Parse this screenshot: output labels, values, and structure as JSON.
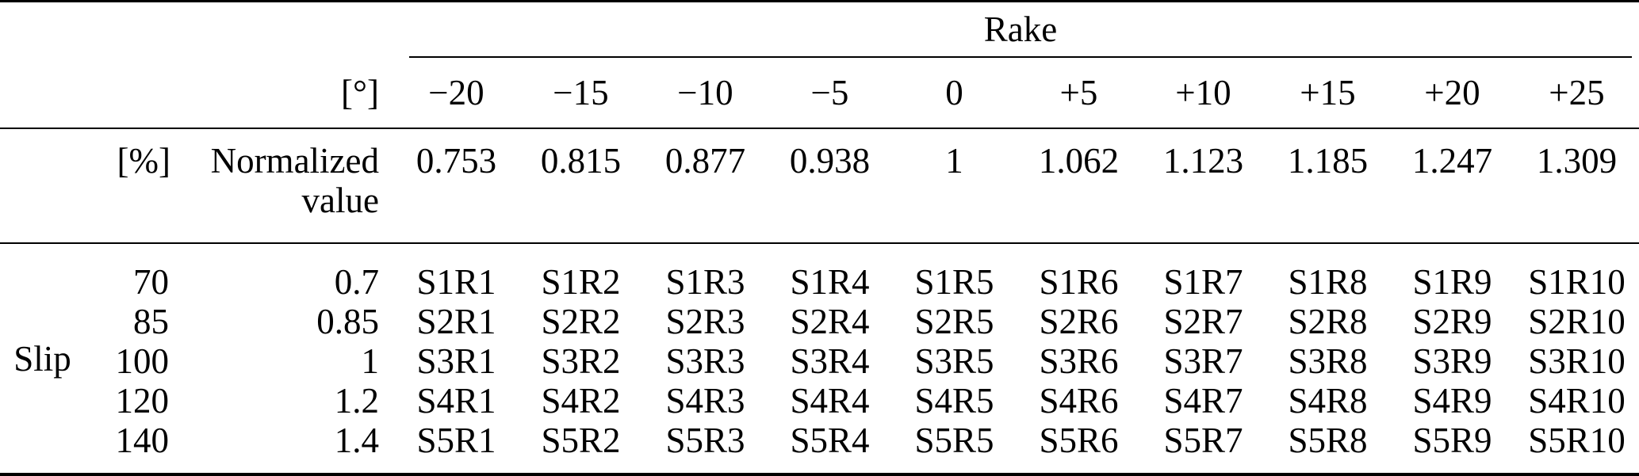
{
  "table": {
    "rake_group_label": "Rake",
    "degree_unit": "[°]",
    "percent_unit": "[%]",
    "normalized_label_line1": "Normalized",
    "normalized_label_line2": "value",
    "slip_label": "Slip",
    "rake_degrees": [
      "−20",
      "−15",
      "−10",
      "−5",
      "0",
      "+5",
      "+10",
      "+15",
      "+20",
      "+25"
    ],
    "rake_normalized": [
      "0.753",
      "0.815",
      "0.877",
      "0.938",
      "1",
      "1.062",
      "1.123",
      "1.185",
      "1.247",
      "1.309"
    ],
    "slip_rows": [
      {
        "percent": "70",
        "normalized": "0.7",
        "cells": [
          "S1R1",
          "S1R2",
          "S1R3",
          "S1R4",
          "S1R5",
          "S1R6",
          "S1R7",
          "S1R8",
          "S1R9",
          "S1R10"
        ]
      },
      {
        "percent": "85",
        "normalized": "0.85",
        "cells": [
          "S2R1",
          "S2R2",
          "S2R3",
          "S2R4",
          "S2R5",
          "S2R6",
          "S2R7",
          "S2R8",
          "S2R9",
          "S2R10"
        ]
      },
      {
        "percent": "100",
        "normalized": "1",
        "cells": [
          "S3R1",
          "S3R2",
          "S3R3",
          "S3R4",
          "S3R5",
          "S3R6",
          "S3R7",
          "S3R8",
          "S3R9",
          "S3R10"
        ]
      },
      {
        "percent": "120",
        "normalized": "1.2",
        "cells": [
          "S4R1",
          "S4R2",
          "S4R3",
          "S4R4",
          "S4R5",
          "S4R6",
          "S4R7",
          "S4R8",
          "S4R9",
          "S4R10"
        ]
      },
      {
        "percent": "140",
        "normalized": "1.4",
        "cells": [
          "S5R1",
          "S5R2",
          "S5R3",
          "S5R4",
          "S5R5",
          "S5R6",
          "S5R7",
          "S5R8",
          "S5R9",
          "S5R10"
        ]
      }
    ]
  },
  "colors": {
    "text": "#000000",
    "background": "#ffffff",
    "rule": "#000000"
  }
}
